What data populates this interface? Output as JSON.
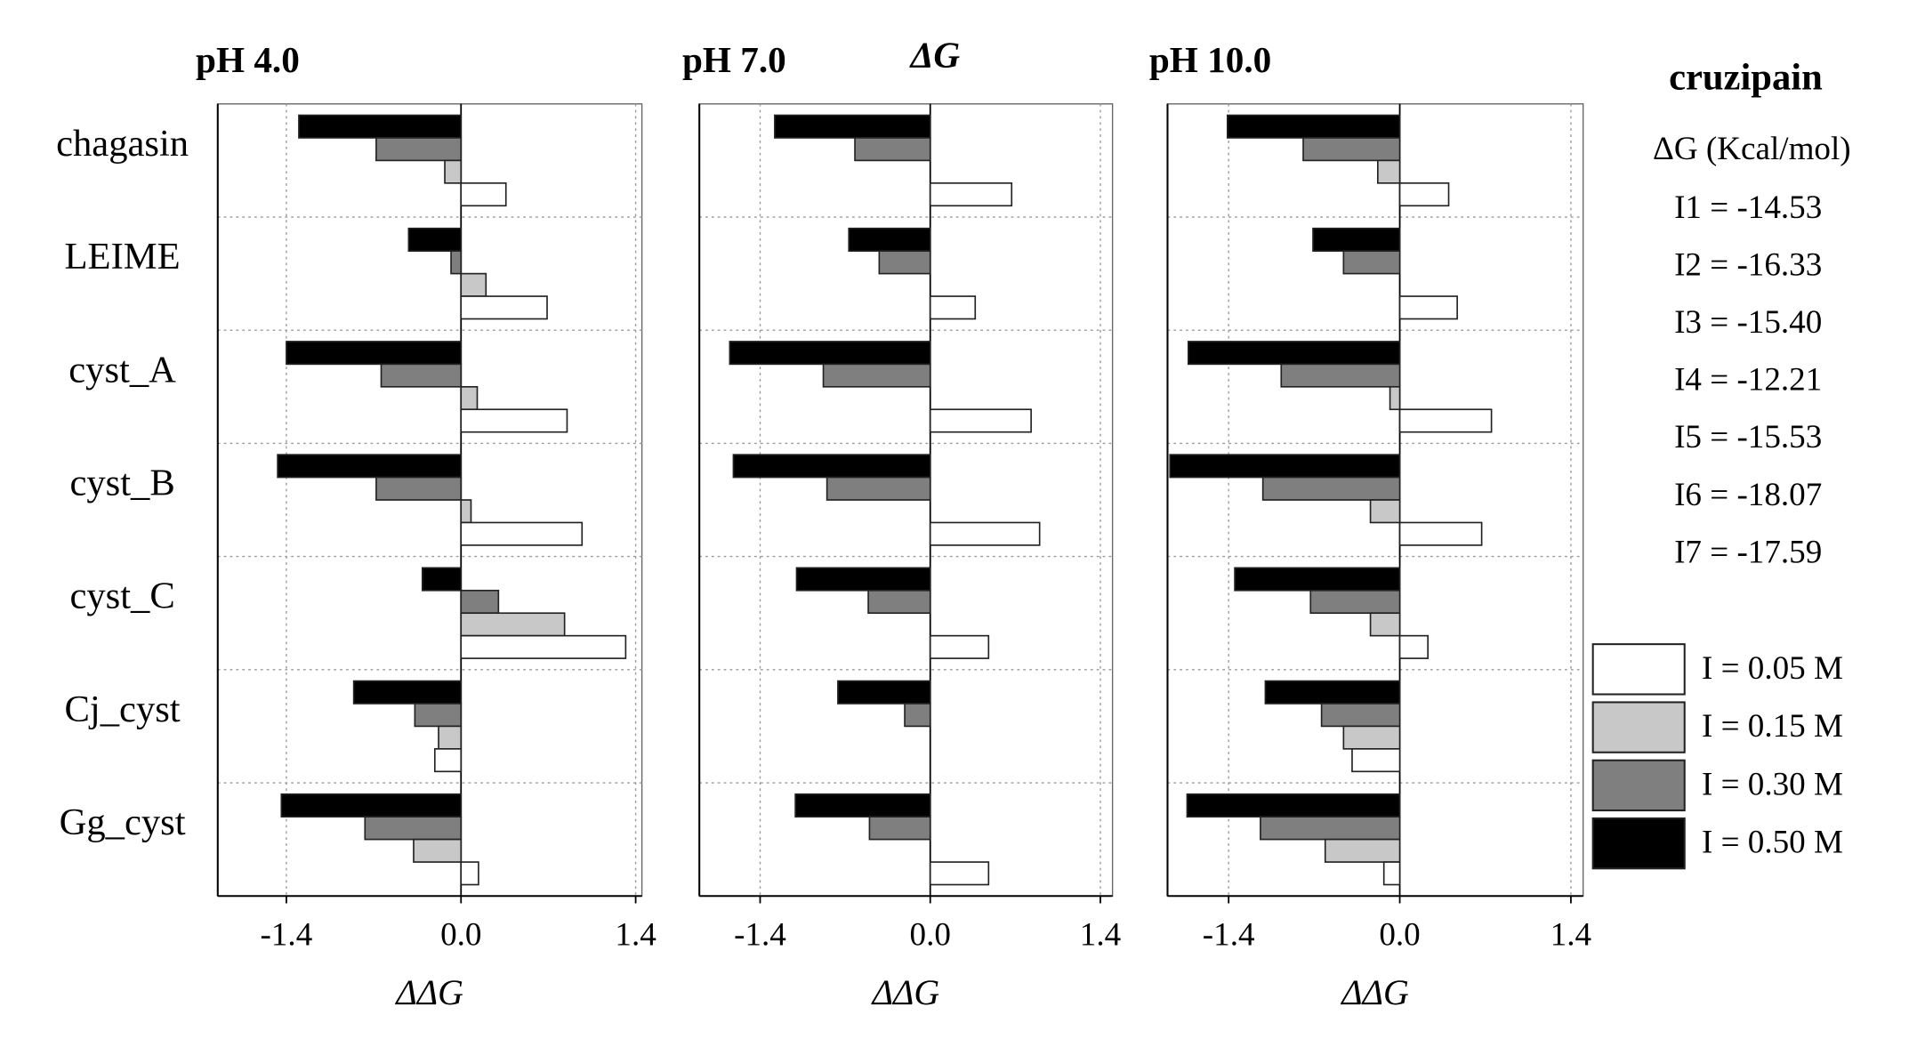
{
  "title": "ΔG",
  "side_note": {
    "title": "cruzipain",
    "subtitle": "ΔG (Kcal/mol)",
    "entries": [
      "I1 = -14.53",
      "I2 = -16.33",
      "I3 = -15.40",
      "I4 = -12.21",
      "I5 = -15.53",
      "I6 = -18.07",
      "I7 = -17.59"
    ]
  },
  "chart_data": [
    {
      "type": "hbar",
      "title": "pH 4.0",
      "x_label": "ΔΔG",
      "categories": [
        "chagasin",
        "LEIME",
        "cyst_A",
        "cyst_B",
        "cyst_C",
        "Cj_cyst",
        "Gg_cyst"
      ],
      "xlim": [
        -1.95,
        1.45
      ],
      "xticks": [
        -1.4,
        {
          "value": 0,
          "label": "0.0"
        },
        1.4
      ],
      "grid": true,
      "series": [
        {
          "name": "I = 0.05 M",
          "color": "#ffffff",
          "values": [
            0.36,
            0.69,
            0.85,
            0.97,
            1.32,
            -0.21,
            0.14
          ]
        },
        {
          "name": "I = 0.15 M",
          "color": "#c8c8c8",
          "values": [
            -0.13,
            0.2,
            0.13,
            0.08,
            0.83,
            -0.18,
            -0.38
          ]
        },
        {
          "name": "I = 0.30 M",
          "color": "#7f7f7f",
          "values": [
            -0.68,
            -0.08,
            -0.64,
            -0.68,
            0.3,
            -0.37,
            -0.77
          ]
        },
        {
          "name": "I = 0.50 M",
          "color": "#000000",
          "values": [
            -1.3,
            -0.42,
            -1.4,
            -1.47,
            -0.31,
            -0.86,
            -1.44
          ]
        }
      ]
    },
    {
      "type": "hbar",
      "title": "pH 7.0",
      "x_label": "ΔΔG",
      "xlim": [
        -1.9,
        1.5
      ],
      "xticks": [
        -1.4,
        {
          "value": 0,
          "label": "0.0"
        },
        1.4
      ],
      "grid": true,
      "series": [
        {
          "values": [
            0.67,
            0.37,
            0.83,
            0.9,
            0.48,
            0,
            0.48
          ]
        },
        {
          "values": [
            0,
            0,
            0,
            0,
            0,
            0,
            0
          ]
        },
        {
          "values": [
            -0.62,
            -0.42,
            -0.88,
            -0.85,
            -0.51,
            -0.21,
            -0.5
          ]
        },
        {
          "values": [
            -1.28,
            -0.67,
            -1.65,
            -1.62,
            -1.1,
            -0.76,
            -1.11
          ]
        }
      ]
    },
    {
      "type": "hbar",
      "title": "pH 10.0",
      "x_label": "ΔΔG",
      "xlim": [
        -1.9,
        1.5
      ],
      "xticks": [
        -1.4,
        {
          "value": 0,
          "label": "0.0"
        },
        1.4
      ],
      "grid": true,
      "series": [
        {
          "values": [
            0.4,
            0.47,
            0.75,
            0.67,
            0.23,
            -0.39,
            -0.13
          ]
        },
        {
          "values": [
            -0.18,
            0,
            -0.08,
            -0.24,
            -0.24,
            -0.46,
            -0.61
          ]
        },
        {
          "values": [
            -0.79,
            -0.46,
            -0.97,
            -1.12,
            -0.73,
            -0.64,
            -1.14
          ]
        },
        {
          "values": [
            -1.41,
            -0.71,
            -1.73,
            -1.88,
            -1.35,
            -1.1,
            -1.74
          ]
        }
      ]
    }
  ]
}
